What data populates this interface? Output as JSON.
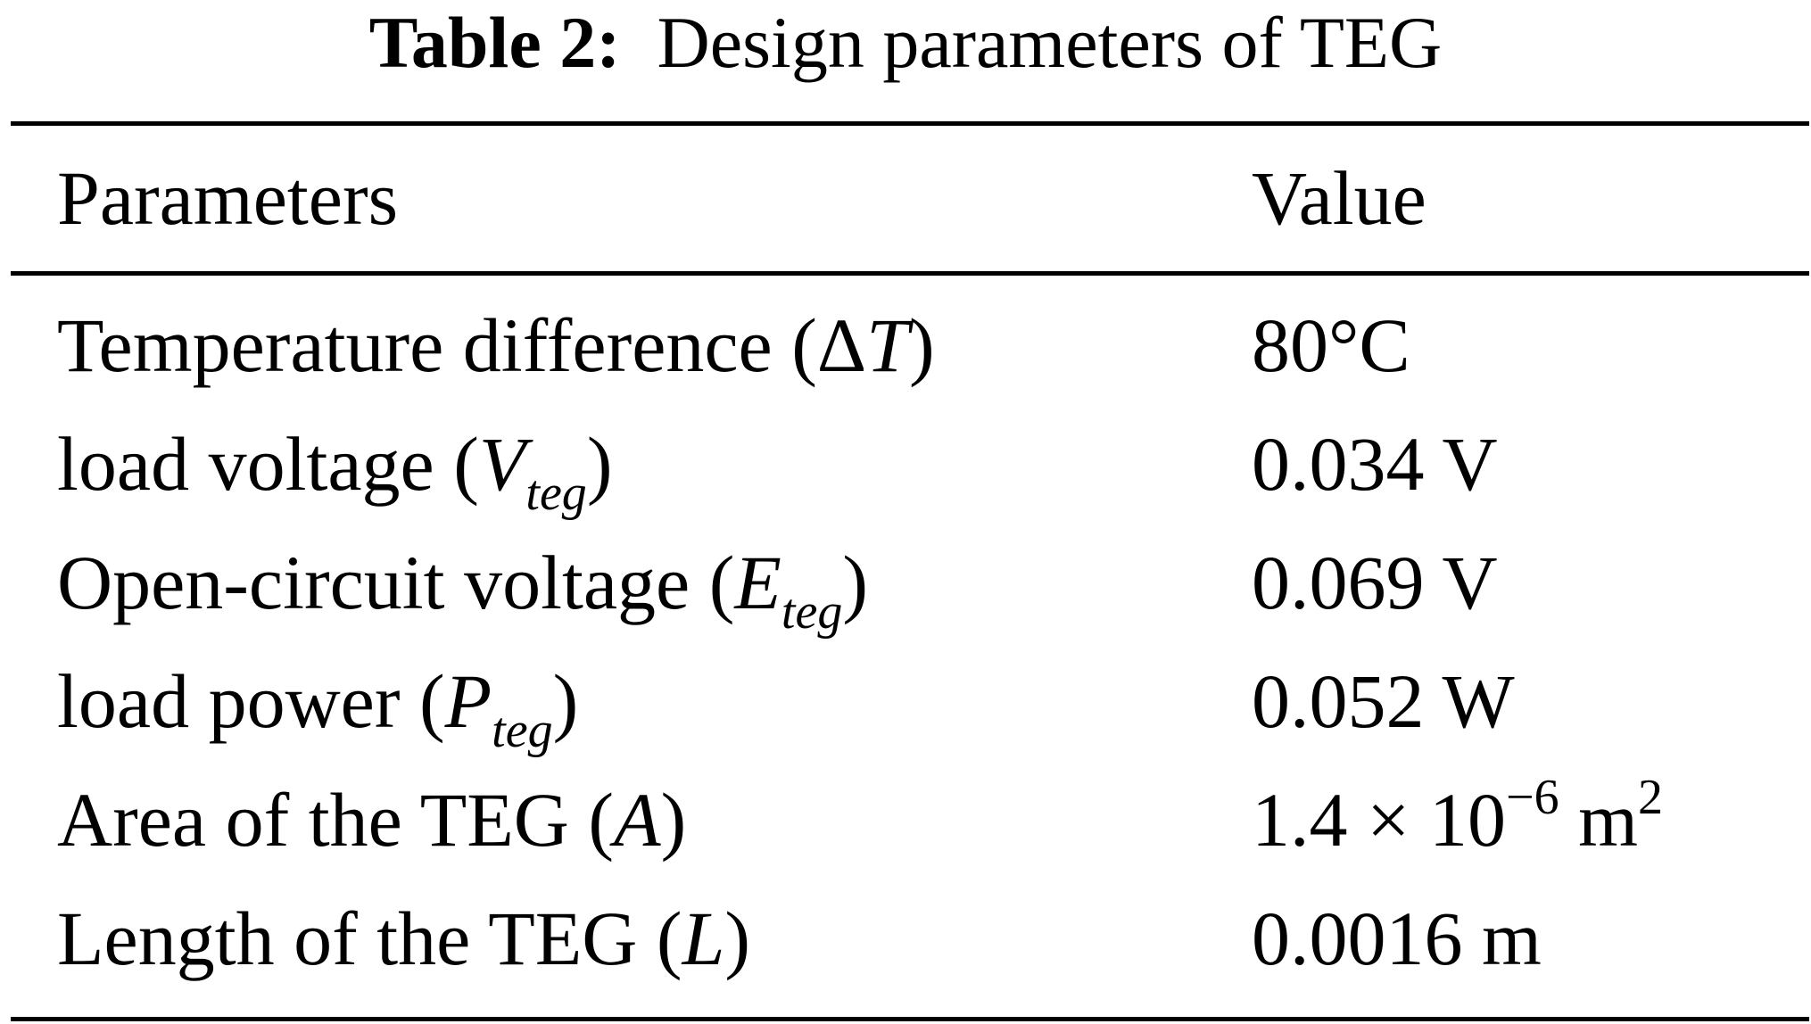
{
  "caption": {
    "label": "Table 2:",
    "text": "Design parameters of TEG"
  },
  "table": {
    "headers": [
      "Parameters",
      "Value"
    ],
    "rows": [
      {
        "param": {
          "text": "Temperature difference (",
          "symbol": "ΔT",
          "subscript": "",
          "close": ")"
        },
        "value": {
          "text": "80°C",
          "superscript": "",
          "tail": "",
          "tail_superscript": ""
        }
      },
      {
        "param": {
          "text": "load voltage (",
          "symbol": "V",
          "subscript": "teg",
          "close": ")"
        },
        "value": {
          "text": "0.034 V",
          "superscript": "",
          "tail": "",
          "tail_superscript": ""
        }
      },
      {
        "param": {
          "text": "Open-circuit voltage (",
          "symbol": "E",
          "subscript": "teg",
          "close": ")"
        },
        "value": {
          "text": "0.069 V",
          "superscript": "",
          "tail": "",
          "tail_superscript": ""
        }
      },
      {
        "param": {
          "text": "load power (",
          "symbol": "P",
          "subscript": "teg",
          "close": ")"
        },
        "value": {
          "text": "0.052 W",
          "superscript": "",
          "tail": "",
          "tail_superscript": ""
        }
      },
      {
        "param": {
          "text": "Area of the TEG (",
          "symbol": "A",
          "subscript": "",
          "close": ")"
        },
        "value": {
          "text": "1.4 × 10",
          "superscript": "−6",
          "tail": " m",
          "tail_superscript": "2"
        }
      },
      {
        "param": {
          "text": "Length of the TEG (",
          "symbol": "L",
          "subscript": "",
          "close": ")"
        },
        "value": {
          "text": "0.0016 m",
          "superscript": "",
          "tail": "",
          "tail_superscript": ""
        }
      }
    ]
  }
}
